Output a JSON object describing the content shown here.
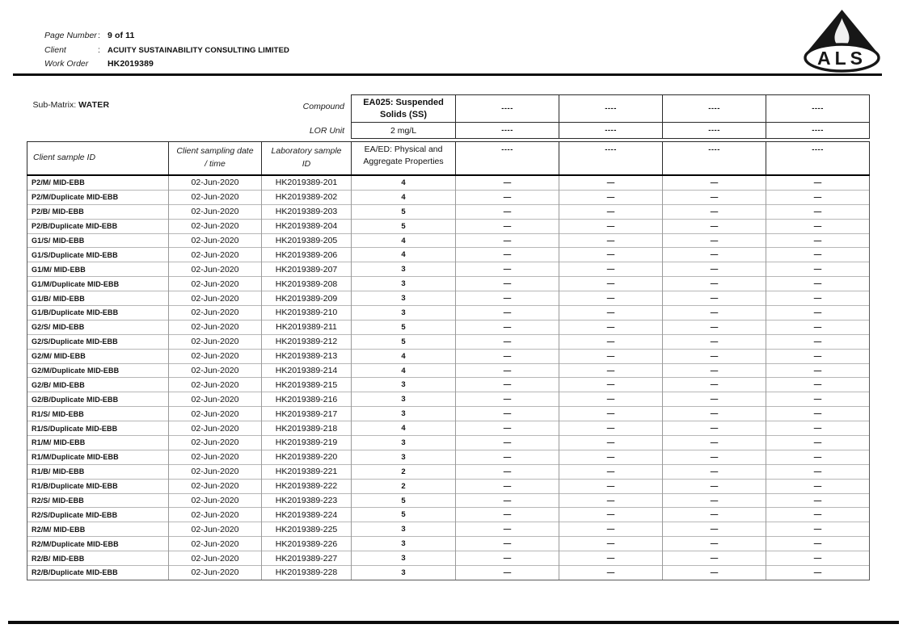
{
  "page": {
    "fields": [
      {
        "label": "Page Number",
        "separator": ":",
        "value": "9 of 11"
      },
      {
        "label": "Client",
        "separator": ":",
        "value": "ACUITY SUSTAINABILITY CONSULTING LIMITED"
      },
      {
        "label": "Work Order",
        "separator": "",
        "value": "HK2019389"
      }
    ],
    "logo_text": "ALS"
  },
  "table": {
    "sub_matrix": {
      "label": "Sub-Matrix:",
      "value": "WATER"
    },
    "compound_label": "Compound",
    "lor_unit_label": "LOR Unit",
    "left_columns": [
      {
        "lines": "Client sample ID"
      },
      {
        "lines": "Client sampling date\n/ time"
      },
      {
        "lines": "Laboratory sample\nID"
      }
    ],
    "analyte_columns": [
      {
        "name": "EA025: Suspended\nSolids (SS)",
        "lor_unit": "2 mg/L",
        "method": "EA/ED: Physical and\nAggregate Properties"
      },
      {
        "name": "----",
        "lor_unit": "----",
        "method": "----"
      },
      {
        "name": "----",
        "lor_unit": "----",
        "method": "----"
      },
      {
        "name": "----",
        "lor_unit": "----",
        "method": "----"
      },
      {
        "name": "----",
        "lor_unit": "----",
        "method": "----"
      }
    ],
    "empty_result": "—",
    "rows": [
      {
        "id": "P2/M/ MID-EBB",
        "date": "02-Jun-2020",
        "lab": "HK2019389-201",
        "value": "4"
      },
      {
        "id": "P2/M/Duplicate MID-EBB",
        "date": "02-Jun-2020",
        "lab": "HK2019389-202",
        "value": "4"
      },
      {
        "id": "P2/B/ MID-EBB",
        "date": "02-Jun-2020",
        "lab": "HK2019389-203",
        "value": "5"
      },
      {
        "id": "P2/B/Duplicate MID-EBB",
        "date": "02-Jun-2020",
        "lab": "HK2019389-204",
        "value": "5"
      },
      {
        "id": "G1/S/ MID-EBB",
        "date": "02-Jun-2020",
        "lab": "HK2019389-205",
        "value": "4"
      },
      {
        "id": "G1/S/Duplicate MID-EBB",
        "date": "02-Jun-2020",
        "lab": "HK2019389-206",
        "value": "4"
      },
      {
        "id": "G1/M/ MID-EBB",
        "date": "02-Jun-2020",
        "lab": "HK2019389-207",
        "value": "3"
      },
      {
        "id": "G1/M/Duplicate MID-EBB",
        "date": "02-Jun-2020",
        "lab": "HK2019389-208",
        "value": "3"
      },
      {
        "id": "G1/B/ MID-EBB",
        "date": "02-Jun-2020",
        "lab": "HK2019389-209",
        "value": "3"
      },
      {
        "id": "G1/B/Duplicate MID-EBB",
        "date": "02-Jun-2020",
        "lab": "HK2019389-210",
        "value": "3"
      },
      {
        "id": "G2/S/ MID-EBB",
        "date": "02-Jun-2020",
        "lab": "HK2019389-211",
        "value": "5"
      },
      {
        "id": "G2/S/Duplicate MID-EBB",
        "date": "02-Jun-2020",
        "lab": "HK2019389-212",
        "value": "5"
      },
      {
        "id": "G2/M/ MID-EBB",
        "date": "02-Jun-2020",
        "lab": "HK2019389-213",
        "value": "4"
      },
      {
        "id": "G2/M/Duplicate MID-EBB",
        "date": "02-Jun-2020",
        "lab": "HK2019389-214",
        "value": "4"
      },
      {
        "id": "G2/B/ MID-EBB",
        "date": "02-Jun-2020",
        "lab": "HK2019389-215",
        "value": "3"
      },
      {
        "id": "G2/B/Duplicate MID-EBB",
        "date": "02-Jun-2020",
        "lab": "HK2019389-216",
        "value": "3"
      },
      {
        "id": "R1/S/ MID-EBB",
        "date": "02-Jun-2020",
        "lab": "HK2019389-217",
        "value": "3"
      },
      {
        "id": "R1/S/Duplicate MID-EBB",
        "date": "02-Jun-2020",
        "lab": "HK2019389-218",
        "value": "4"
      },
      {
        "id": "R1/M/ MID-EBB",
        "date": "02-Jun-2020",
        "lab": "HK2019389-219",
        "value": "3"
      },
      {
        "id": "R1/M/Duplicate MID-EBB",
        "date": "02-Jun-2020",
        "lab": "HK2019389-220",
        "value": "3"
      },
      {
        "id": "R1/B/ MID-EBB",
        "date": "02-Jun-2020",
        "lab": "HK2019389-221",
        "value": "2"
      },
      {
        "id": "R1/B/Duplicate MID-EBB",
        "date": "02-Jun-2020",
        "lab": "HK2019389-222",
        "value": "2"
      },
      {
        "id": "R2/S/ MID-EBB",
        "date": "02-Jun-2020",
        "lab": "HK2019389-223",
        "value": "5"
      },
      {
        "id": "R2/S/Duplicate MID-EBB",
        "date": "02-Jun-2020",
        "lab": "HK2019389-224",
        "value": "5"
      },
      {
        "id": "R2/M/ MID-EBB",
        "date": "02-Jun-2020",
        "lab": "HK2019389-225",
        "value": "3"
      },
      {
        "id": "R2/M/Duplicate MID-EBB",
        "date": "02-Jun-2020",
        "lab": "HK2019389-226",
        "value": "3"
      },
      {
        "id": "R2/B/ MID-EBB",
        "date": "02-Jun-2020",
        "lab": "HK2019389-227",
        "value": "3"
      },
      {
        "id": "R2/B/Duplicate MID-EBB",
        "date": "02-Jun-2020",
        "lab": "HK2019389-228",
        "value": "3"
      }
    ]
  }
}
